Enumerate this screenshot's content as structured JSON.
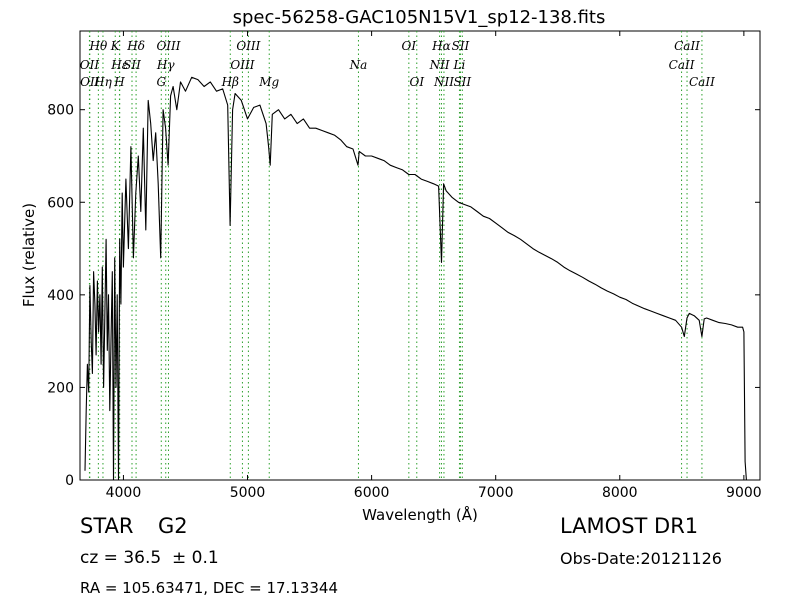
{
  "chart_data": {
    "type": "line",
    "title": "spec-56258-GAC105N15V1_sp12-138.fits",
    "xlabel": "Wavelength (Å)",
    "ylabel": "Flux (relative)",
    "xlim": [
      3650,
      9130
    ],
    "ylim": [
      0,
      970
    ],
    "xticks": [
      4000,
      5000,
      6000,
      7000,
      8000,
      9000
    ],
    "yticks": [
      0,
      200,
      400,
      600,
      800
    ],
    "grid": false,
    "line_color": "#000000",
    "marker_color": "#2ca02c",
    "series": [
      {
        "x": [
          3690,
          3700,
          3710,
          3720,
          3730,
          3740,
          3750,
          3760,
          3770,
          3780,
          3790,
          3800,
          3810,
          3820,
          3830,
          3840,
          3850,
          3860,
          3870,
          3880,
          3890,
          3900,
          3910,
          3920,
          3930,
          3940,
          3950,
          3960,
          3970,
          3980,
          3990,
          4000,
          4020,
          4040,
          4060,
          4080,
          4100,
          4120,
          4140,
          4160,
          4180,
          4200,
          4220,
          4240,
          4260,
          4280,
          4300,
          4320,
          4340,
          4360,
          4380,
          4400,
          4430,
          4460,
          4500,
          4550,
          4600,
          4650,
          4700,
          4750,
          4800,
          4840,
          4860,
          4880,
          4900,
          4950,
          5000,
          5050,
          5100,
          5150,
          5170,
          5183,
          5200,
          5250,
          5300,
          5350,
          5400,
          5450,
          5500,
          5550,
          5600,
          5650,
          5700,
          5750,
          5800,
          5850,
          5890,
          5900,
          5950,
          6000,
          6050,
          6100,
          6150,
          6200,
          6250,
          6300,
          6350,
          6400,
          6450,
          6500,
          6540,
          6563,
          6580,
          6600,
          6650,
          6700,
          6750,
          6800,
          6850,
          6900,
          6950,
          7000,
          7050,
          7100,
          7150,
          7200,
          7250,
          7300,
          7350,
          7400,
          7450,
          7500,
          7550,
          7600,
          7650,
          7700,
          7750,
          7800,
          7850,
          7900,
          7950,
          8000,
          8050,
          8100,
          8150,
          8200,
          8250,
          8300,
          8350,
          8400,
          8450,
          8498,
          8520,
          8542,
          8560,
          8600,
          8640,
          8662,
          8680,
          8700,
          8750,
          8800,
          8850,
          8900,
          8950,
          8980,
          8990,
          9000,
          9010,
          9020
        ],
        "y": [
          20,
          150,
          250,
          190,
          420,
          300,
          230,
          450,
          380,
          270,
          430,
          320,
          400,
          250,
          460,
          200,
          350,
          520,
          280,
          400,
          150,
          300,
          450,
          0,
          480,
          200,
          400,
          0,
          520,
          380,
          620,
          460,
          650,
          500,
          720,
          480,
          620,
          700,
          580,
          760,
          540,
          820,
          770,
          690,
          750,
          640,
          480,
          800,
          760,
          680,
          830,
          850,
          800,
          860,
          840,
          870,
          865,
          850,
          860,
          840,
          845,
          810,
          550,
          800,
          835,
          820,
          780,
          805,
          810,
          770,
          720,
          680,
          790,
          800,
          780,
          790,
          770,
          780,
          760,
          760,
          755,
          750,
          745,
          735,
          720,
          715,
          680,
          710,
          700,
          700,
          695,
          690,
          680,
          675,
          670,
          660,
          660,
          650,
          645,
          640,
          635,
          470,
          640,
          625,
          610,
          600,
          595,
          590,
          580,
          570,
          565,
          555,
          545,
          535,
          528,
          520,
          510,
          500,
          492,
          485,
          478,
          470,
          460,
          452,
          445,
          438,
          430,
          423,
          415,
          408,
          402,
          395,
          390,
          382,
          376,
          370,
          365,
          360,
          355,
          350,
          345,
          330,
          310,
          350,
          360,
          355,
          345,
          310,
          348,
          350,
          345,
          340,
          338,
          335,
          330,
          330,
          330,
          320,
          40,
          0
        ]
      }
    ],
    "lines": [
      {
        "name": "Hθ",
        "row": 1,
        "x": 3798
      },
      {
        "name": "OII",
        "row": 2,
        "x": 3726
      },
      {
        "name": "OII",
        "row": 3,
        "x": 3729
      },
      {
        "name": "K",
        "row": 1,
        "x": 3934
      },
      {
        "name": "Hη",
        "row": 3,
        "x": 3835
      },
      {
        "name": "Hε",
        "row": 2,
        "x": 3970
      },
      {
        "name": "SII",
        "row": 2,
        "x": 4069
      },
      {
        "name": "H",
        "row": 3,
        "x": 3968
      },
      {
        "name": "Hδ",
        "row": 1,
        "x": 4102
      },
      {
        "name": "OIII",
        "row": 1,
        "x": 4363
      },
      {
        "name": "Hγ",
        "row": 2,
        "x": 4341
      },
      {
        "name": "G",
        "row": 3,
        "x": 4305
      },
      {
        "name": "Hβ",
        "row": 3,
        "x": 4861
      },
      {
        "name": "OIII",
        "row": 1,
        "x": 5007
      },
      {
        "name": "OIII",
        "row": 2,
        "x": 4959
      },
      {
        "name": "Mg",
        "row": 3,
        "x": 5175
      },
      {
        "name": "Na",
        "row": 2,
        "x": 5894
      },
      {
        "name": "OI",
        "row": 1,
        "x": 6300
      },
      {
        "name": "OI",
        "row": 3,
        "x": 6364
      },
      {
        "name": "Hα",
        "row": 1,
        "x": 6563
      },
      {
        "name": "SII",
        "row": 1,
        "x": 6716
      },
      {
        "name": "NII",
        "row": 2,
        "x": 6548
      },
      {
        "name": "NII",
        "row": 3,
        "x": 6583
      },
      {
        "name": "Li",
        "row": 2,
        "x": 6708
      },
      {
        "name": "SII",
        "row": 3,
        "x": 6731
      },
      {
        "name": "CaII",
        "row": 1,
        "x": 8542
      },
      {
        "name": "CaII",
        "row": 2,
        "x": 8498
      },
      {
        "name": "CaII",
        "row": 3,
        "x": 8662
      }
    ]
  },
  "info": {
    "class": "STAR",
    "subclass": "G2",
    "survey": "LAMOST DR1",
    "cz": "cz = 36.5  ± 0.1",
    "obs_date": "Obs-Date:20121126",
    "radec": "RA = 105.63471, DEC = 17.13344"
  }
}
